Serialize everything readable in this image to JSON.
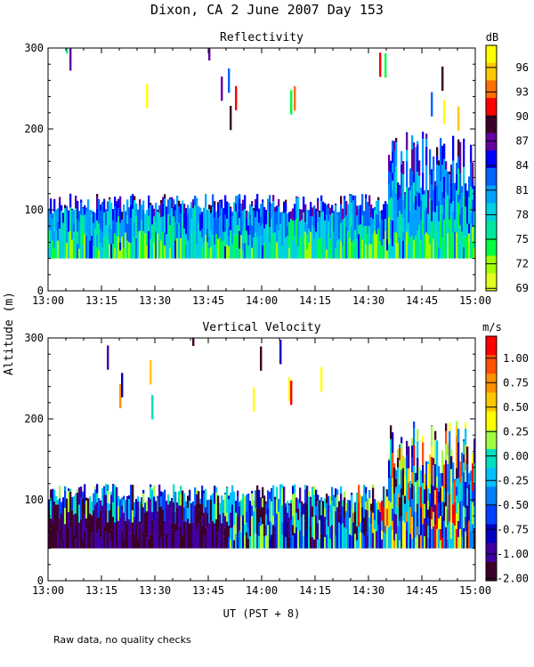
{
  "figure": {
    "title": "Dixon, CA  2 June 2007  Day 153",
    "ylabel": "Altitude (m)",
    "xlabel": "UT  (PST + 8)",
    "footnote": "Raw data, no quality checks"
  },
  "chart_data": [
    {
      "type": "heatmap",
      "title": "Reflectivity",
      "colorbar_unit": "dB",
      "colorbar_ticks": [
        "96",
        "93",
        "90",
        "87",
        "84",
        "81",
        "78",
        "75",
        "72",
        "69"
      ],
      "colorbar_colors": [
        "#ffff00",
        "#ffc800",
        "#ff7000",
        "#ff0000",
        "#3c0028",
        "#6400a0",
        "#0000ff",
        "#0064ff",
        "#00a0ff",
        "#00d0e0",
        "#00e8a0",
        "#00ff40",
        "#a0ff00",
        "#e0ff20"
      ],
      "xlim_minutes": [
        0,
        120
      ],
      "x_tick_labels": [
        "13:00",
        "13:15",
        "13:30",
        "13:45",
        "14:00",
        "14:15",
        "14:30",
        "14:45",
        "15:00"
      ],
      "ylim": [
        0,
        300
      ],
      "y_tick_labels": [
        "0",
        "100",
        "200",
        "300"
      ],
      "y_ticks": [
        0,
        100,
        200,
        300
      ]
    },
    {
      "type": "heatmap",
      "title": "Vertical Velocity",
      "colorbar_unit": "m/s",
      "colorbar_ticks": [
        "1.00",
        "0.75",
        "0.50",
        "0.25",
        "0.00",
        "-0.25",
        "-0.50",
        "-0.75",
        "-1.00",
        "-2.00"
      ],
      "colorbar_colors": [
        "#ff0000",
        "#ff5000",
        "#ff9000",
        "#ffc800",
        "#ffff00",
        "#a0ff40",
        "#00e0c0",
        "#00c0ff",
        "#0080ff",
        "#0040ff",
        "#0000c0",
        "#4000a0",
        "#3c0028"
      ],
      "xlim_minutes": [
        0,
        120
      ],
      "x_tick_labels": [
        "13:00",
        "13:15",
        "13:30",
        "13:45",
        "14:00",
        "14:15",
        "14:30",
        "14:45",
        "15:00"
      ],
      "ylim": [
        0,
        300
      ],
      "y_tick_labels": [
        "0",
        "100",
        "200",
        "300"
      ],
      "y_ticks": [
        0,
        100,
        200,
        300
      ]
    }
  ]
}
